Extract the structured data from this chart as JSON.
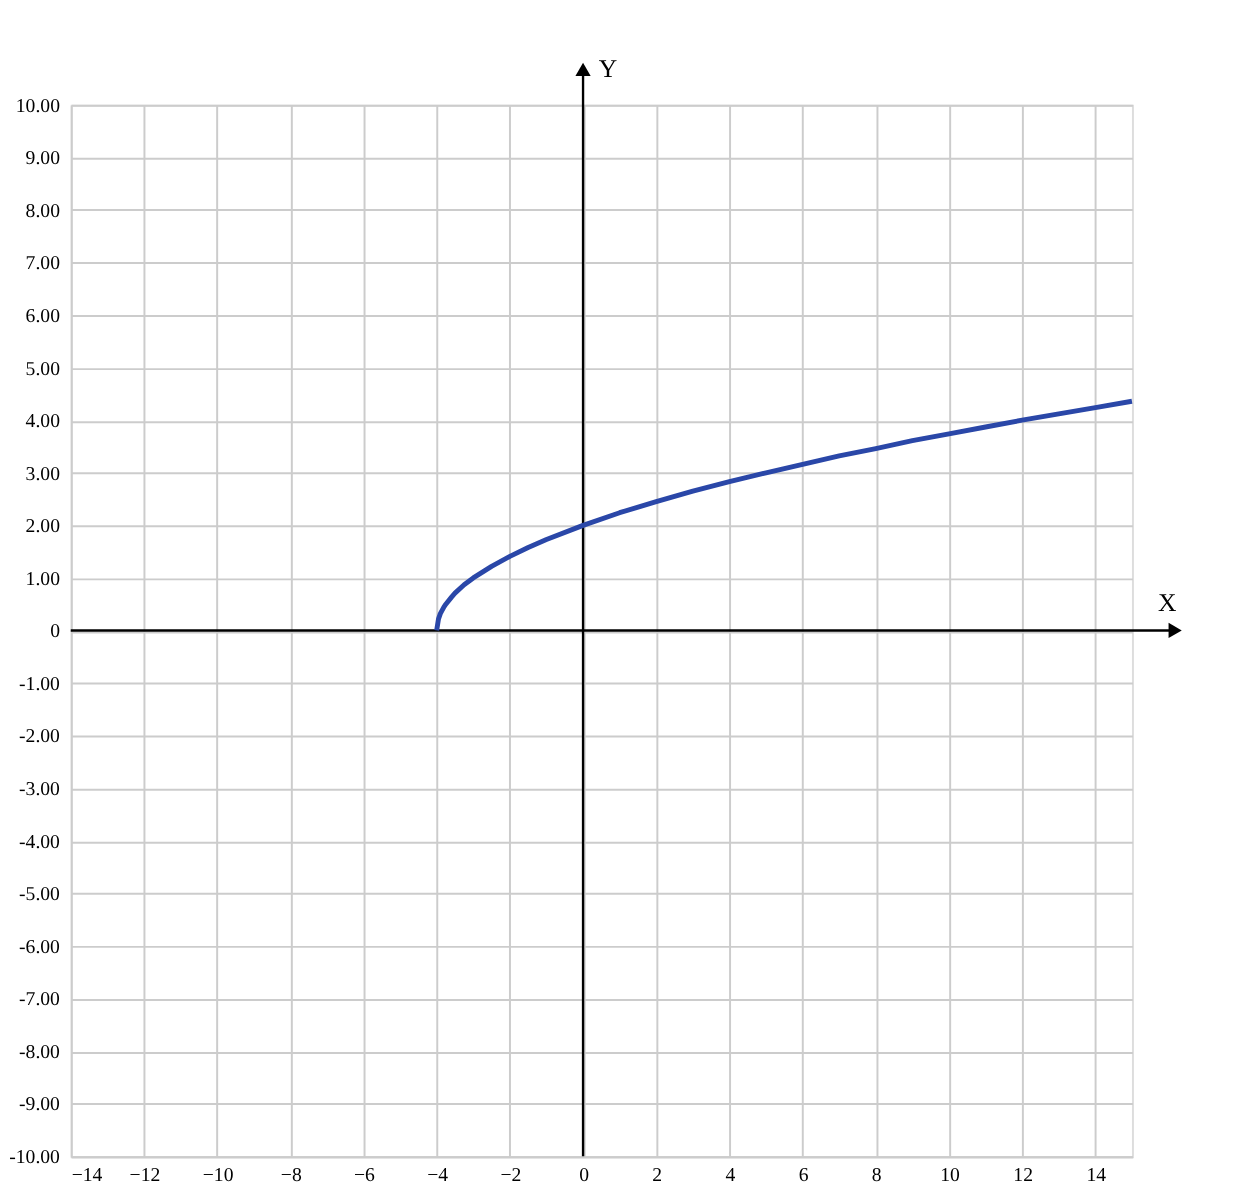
{
  "chart_data": {
    "type": "line",
    "xlabel": "X",
    "ylabel": "Y",
    "x": [
      -4,
      -3.95,
      -3.9,
      -3.8,
      -3.75,
      -3.6,
      -3.5,
      -3.25,
      -3,
      -2.5,
      -2,
      -1.5,
      -1,
      0,
      1,
      2,
      3,
      4,
      5,
      6,
      7,
      8,
      9,
      10,
      11,
      12,
      13,
      14,
      15
    ],
    "series": [
      {
        "color": "#2a47a8",
        "values": [
          0,
          0.22,
          0.32,
          0.45,
          0.5,
          0.63,
          0.71,
          0.87,
          1,
          1.22,
          1.41,
          1.58,
          1.73,
          2,
          2.24,
          2.45,
          2.65,
          2.83,
          3,
          3.16,
          3.32,
          3.46,
          3.61,
          3.74,
          3.87,
          4,
          4.12,
          4.24,
          4.36
        ]
      }
    ],
    "xlim": [
      -14,
      15
    ],
    "ylim": [
      -10,
      10
    ],
    "xticks": [
      -14,
      -12,
      -10,
      -8,
      -6,
      -4,
      -2,
      0,
      2,
      4,
      6,
      8,
      10,
      12,
      14
    ],
    "yticks": [
      {
        "value": -10,
        "label": "-10.00"
      },
      {
        "value": -9,
        "label": "-9.00"
      },
      {
        "value": -8,
        "label": "-8.00"
      },
      {
        "value": -7,
        "label": "-7.00"
      },
      {
        "value": -6,
        "label": "-6.00"
      },
      {
        "value": -5,
        "label": "-5.00"
      },
      {
        "value": -4,
        "label": "-4.00"
      },
      {
        "value": -3,
        "label": "-3.00"
      },
      {
        "value": -2,
        "label": "-2.00"
      },
      {
        "value": -1,
        "label": "-1.00"
      },
      0,
      {
        "value": 1,
        "label": "1.00"
      },
      {
        "value": 2,
        "label": "2.00"
      },
      {
        "value": 3,
        "label": "3.00"
      },
      {
        "value": 4,
        "label": "4.00"
      },
      {
        "value": 5,
        "label": "5.00"
      },
      {
        "value": 6,
        "label": "6.00"
      },
      {
        "value": 7,
        "label": "7.00"
      },
      {
        "value": 8,
        "label": "8.00"
      },
      {
        "value": 9,
        "label": "9.00"
      },
      {
        "value": 10,
        "label": "10.00"
      }
    ],
    "grid": true,
    "line_style": "solid"
  }
}
